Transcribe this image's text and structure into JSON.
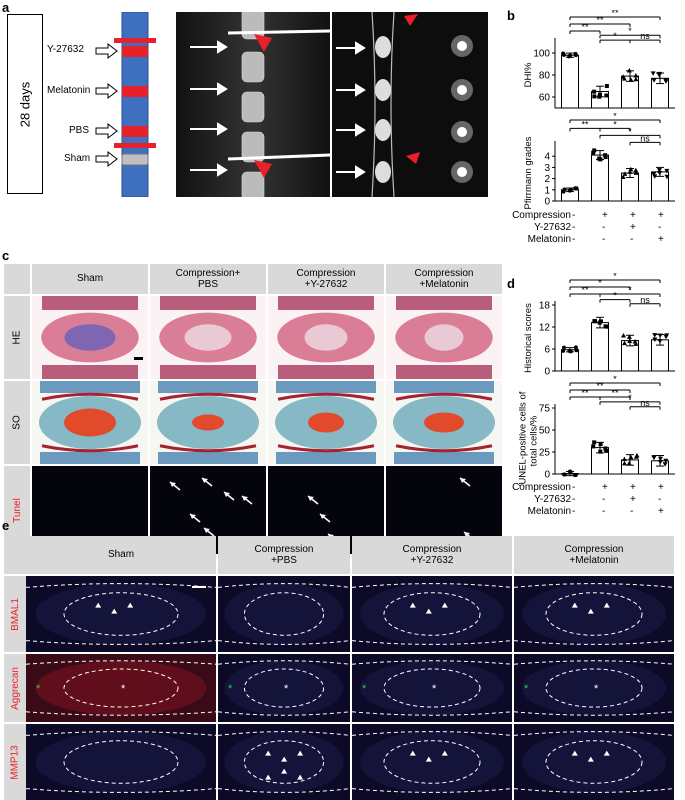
{
  "panel_a": {
    "label": "a",
    "timeline": "28 days",
    "groups": [
      "Y-27632",
      "Melatonin",
      "PBS",
      "Sham"
    ]
  },
  "panel_b": {
    "label": "b",
    "chart_dhi": {
      "ylabel": "DHI%",
      "ticks": [
        "100",
        "80",
        "60"
      ]
    },
    "chart_pf": {
      "ylabel": "Pfirrmann grades",
      "ticks": [
        "4",
        "3",
        "2",
        "1",
        "0"
      ]
    },
    "conditions": {
      "rows": [
        {
          "label": "Compression",
          "vals": [
            "-",
            "+",
            "+",
            "+"
          ]
        },
        {
          "label": "Y-27632",
          "vals": [
            "-",
            "-",
            "+",
            "-"
          ]
        },
        {
          "label": "Melatonin",
          "vals": [
            "-",
            "-",
            "-",
            "+"
          ]
        }
      ]
    }
  },
  "chart_data": [
    {
      "type": "bar",
      "categories": [
        "Sham",
        "Compression+PBS",
        "Compression+Y-27632",
        "Compression+Melatonin"
      ],
      "values": [
        98,
        65,
        79,
        77
      ],
      "ylabel": "DHI%",
      "ylim": [
        50,
        110
      ],
      "significance": [
        "**",
        "**",
        "**",
        "*",
        "*",
        "ns"
      ]
    },
    {
      "type": "bar",
      "categories": [
        "Sham",
        "Compression+PBS",
        "Compression+Y-27632",
        "Compression+Melatonin"
      ],
      "values": [
        1.0,
        4.1,
        2.5,
        2.6
      ],
      "ylabel": "Pfirrmann grades",
      "ylim": [
        0,
        5
      ],
      "significance": [
        "*",
        "**",
        "*",
        "*",
        "ns"
      ]
    },
    {
      "type": "bar",
      "categories": [
        "Sham",
        "Compression+PBS",
        "Compression+Y-27632",
        "Compression+Melatonin"
      ],
      "values": [
        5.8,
        13.2,
        8.3,
        8.5
      ],
      "ylabel": "Historical scores",
      "ylim": [
        0,
        18
      ],
      "significance": [
        "*",
        "*",
        "**",
        "*",
        "*",
        "ns"
      ]
    },
    {
      "type": "bar",
      "categories": [
        "Sham",
        "Compression+PBS",
        "Compression+Y-27632",
        "Compression+Melatonin"
      ],
      "values": [
        0.5,
        30,
        16,
        15
      ],
      "ylabel": "TUNEL-positive cells of total cells/%",
      "ylim": [
        0,
        75
      ],
      "significance": [
        "*",
        "**",
        "**",
        "**",
        "*",
        "ns"
      ]
    }
  ],
  "panel_c": {
    "label": "c",
    "columns": [
      "Sham",
      "Compression+\nPBS",
      "Compression\n+Y-27632",
      "Compression\n+Melatonin"
    ],
    "rows": [
      "HE",
      "SO",
      "Tunel"
    ]
  },
  "panel_d": {
    "label": "d",
    "chart_hist": {
      "ylabel": "Historical scores",
      "ticks": [
        "18",
        "12",
        "6",
        "0"
      ]
    },
    "chart_tunel": {
      "ylabel1": "TUNEL-positive cells of",
      "ylabel2": "total cells/%",
      "ticks": [
        "75",
        "50",
        "25",
        "0"
      ]
    },
    "conditions": {
      "rows": [
        {
          "label": "Compression",
          "vals": [
            "-",
            "+",
            "+",
            "+"
          ]
        },
        {
          "label": "Y-27632",
          "vals": [
            "-",
            "-",
            "+",
            "-"
          ]
        },
        {
          "label": "Melatonin",
          "vals": [
            "-",
            "-",
            "-",
            "+"
          ]
        }
      ]
    }
  },
  "panel_e": {
    "label": "e",
    "columns": [
      "Sham",
      "Compression\n+PBS",
      "Compression\n+Y-27632",
      "Compression\n+Melatonin"
    ],
    "rows": [
      "BMAL1",
      "Aggrecan",
      "MMP13"
    ]
  },
  "colors": {
    "red": "#e8202a",
    "blue": "#3a66b8",
    "gray": "#bfbfbf",
    "header": "#d9d9d9"
  }
}
